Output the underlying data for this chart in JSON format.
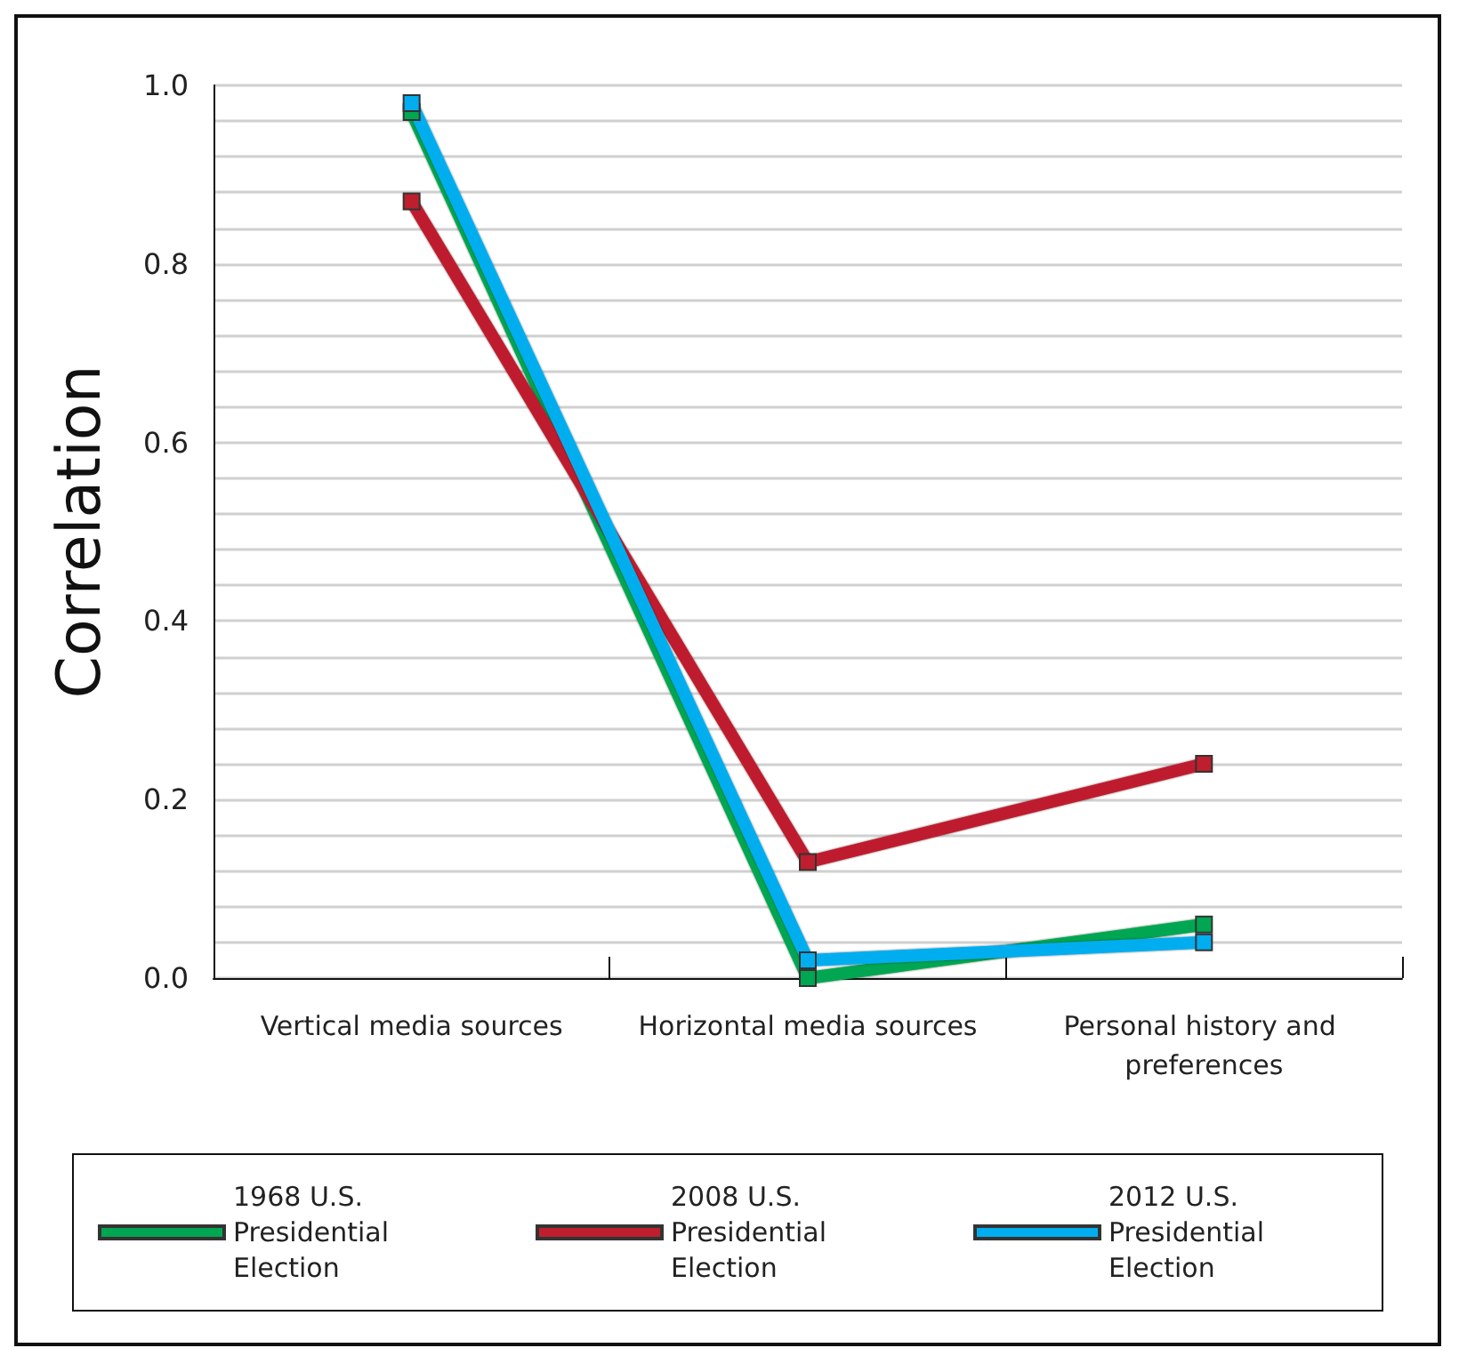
{
  "chart_data": {
    "type": "line",
    "ylabel": "Correlation",
    "categories": [
      "Vertical media sources",
      "Horizontal media sources",
      "Personal history and preferences"
    ],
    "series": [
      {
        "name": "1968 U.S. Presidential Election",
        "color": "#00a651",
        "values": [
          0.97,
          0,
          0.06
        ]
      },
      {
        "name": "2008 U.S. Presidential Election",
        "color": "#be1e2d",
        "values": [
          0.87,
          0.13,
          0.24
        ]
      },
      {
        "name": "2012 U.S. Presidential Election",
        "color": "#00aeef",
        "values": [
          0.98,
          0.02,
          0.04
        ]
      }
    ],
    "ylim": [
      0,
      1
    ],
    "yticks": [
      {
        "value": 0,
        "label": "0.0"
      },
      {
        "value": 0.04,
        "label": null
      },
      {
        "value": 0.08,
        "label": null
      },
      {
        "value": 0.12,
        "label": null
      },
      {
        "value": 0.16,
        "label": null
      },
      {
        "value": 0.2,
        "label": "0.2"
      },
      {
        "value": 0.24,
        "label": null
      },
      {
        "value": 0.28,
        "label": null
      },
      {
        "value": 0.32,
        "label": null
      },
      {
        "value": 0.36,
        "label": null
      },
      {
        "value": 0.4,
        "label": "0.4"
      },
      {
        "value": 0.44,
        "label": null
      },
      {
        "value": 0.48,
        "label": null
      },
      {
        "value": 0.52,
        "label": null
      },
      {
        "value": 0.56,
        "label": null
      },
      {
        "value": 0.6,
        "label": "0.6"
      },
      {
        "value": 0.64,
        "label": null
      },
      {
        "value": 0.68,
        "label": null
      },
      {
        "value": 0.72,
        "label": null
      },
      {
        "value": 0.76,
        "label": null
      },
      {
        "value": 0.8,
        "label": "0.8"
      },
      {
        "value": 0.84,
        "label": null
      },
      {
        "value": 0.88,
        "label": null
      },
      {
        "value": 0.92,
        "label": null
      },
      {
        "value": 0.96,
        "label": null
      },
      {
        "value": 1,
        "label": "1.0"
      }
    ],
    "grid": "y",
    "legend": "bottom",
    "marker": "square",
    "line_style": "solid"
  }
}
